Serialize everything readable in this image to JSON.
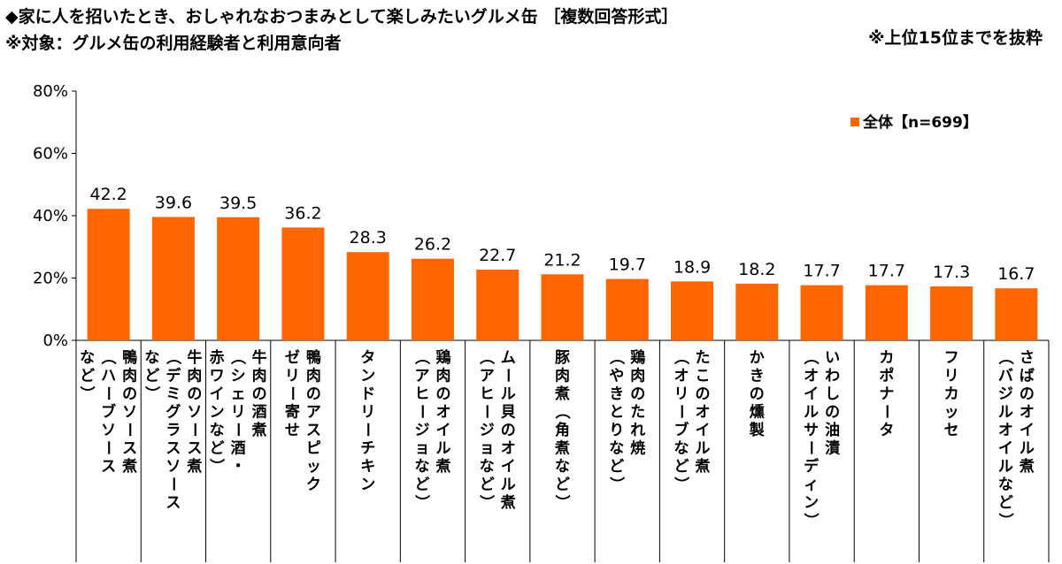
{
  "header": {
    "title": "◆家に人を招いたとき、おしゃれなおつまみとして楽しみたいグルメ缶 ［複数回答形式］",
    "subtitle": "※対象：グルメ缶の利用経験者と利用意向者",
    "note": "※上位15位までを抜粋"
  },
  "chart_data": {
    "type": "bar",
    "categories": [
      [
        "鴨肉のソース煮",
        "（ハーブソース",
        "など）"
      ],
      [
        "牛肉のソース煮",
        "（デミグラスソース",
        "など）"
      ],
      [
        "牛肉の酒煮",
        "（シェリー酒・",
        "赤ワインなど）"
      ],
      [
        "鴨肉のアスピック",
        "ゼリー寄せ"
      ],
      [
        "タンドリーチキン"
      ],
      [
        "鶏肉のオイル煮",
        "（アヒージョなど）"
      ],
      [
        "ムール貝のオイル煮",
        "（アヒージョなど）"
      ],
      [
        "豚肉煮（角煮など）"
      ],
      [
        "鶏肉のたれ焼",
        "（やきとりなど）"
      ],
      [
        "たこのオイル煮",
        "（オリーブなど）"
      ],
      [
        "かきの燻製"
      ],
      [
        "いわしの油漬",
        "（オイルサーディン）"
      ],
      [
        "カポナータ"
      ],
      [
        "フリカッセ"
      ],
      [
        "さばのオイル煮",
        "（バジルオイルなど）"
      ]
    ],
    "series": [
      {
        "name": "全体【n=699】",
        "values": [
          42.2,
          39.6,
          39.5,
          36.2,
          28.3,
          26.2,
          22.7,
          21.2,
          19.7,
          18.9,
          18.2,
          17.7,
          17.7,
          17.3,
          16.7
        ],
        "labels": [
          "42.2",
          "39.6",
          "39.5",
          "36.2",
          "28.3",
          "26.2",
          "22.7",
          "21.2",
          "19.7",
          "18.9",
          "18.2",
          "17.7",
          "17.7",
          "17.3",
          "16.7"
        ]
      }
    ],
    "yticks": [
      "0%",
      "20%",
      "40%",
      "60%",
      "80%"
    ],
    "ylim": [
      0,
      80
    ],
    "grid": false,
    "legend": "top-right",
    "bar_color": "#FF6600"
  }
}
